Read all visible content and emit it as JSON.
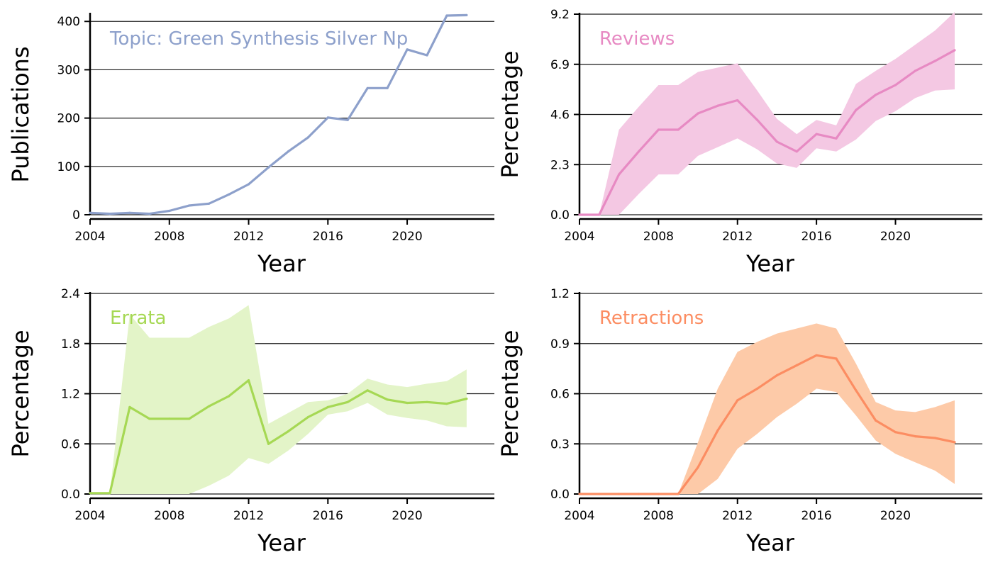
{
  "chart_data": [
    {
      "type": "line",
      "annotation": "Topic: Green Synthesis Silver Np",
      "xlabel": "Year",
      "ylabel": "Publications",
      "xlim": [
        2004,
        2024
      ],
      "ylim": [
        0,
        415
      ],
      "xticks": [
        2004,
        2008,
        2012,
        2016,
        2020
      ],
      "yticks": [
        0,
        100,
        200,
        300,
        400
      ],
      "ytick_labels": [
        "0",
        "100",
        "200",
        "300",
        "400"
      ],
      "grid": "horizontal",
      "color": "#8da0cb",
      "band": false,
      "x": [
        2004,
        2005,
        2006,
        2007,
        2008,
        2009,
        2010,
        2011,
        2012,
        2013,
        2014,
        2015,
        2016,
        2017,
        2018,
        2019,
        2020,
        2021,
        2022,
        2023
      ],
      "values": [
        4,
        2,
        4,
        2,
        8,
        19,
        23,
        42,
        63,
        98,
        131,
        160,
        201,
        196,
        262,
        262,
        342,
        330,
        412,
        413
      ]
    },
    {
      "type": "line",
      "annotation": "Reviews",
      "xlabel": "Year",
      "ylabel": "Percentage",
      "xlim": [
        2004,
        2024
      ],
      "ylim": [
        0,
        9.2
      ],
      "xticks": [
        2004,
        2008,
        2012,
        2016,
        2020
      ],
      "yticks": [
        0,
        2.3,
        4.6,
        6.9,
        9.2
      ],
      "ytick_labels": [
        "0.0",
        "2.3",
        "4.6",
        "6.9",
        "9.2"
      ],
      "grid": "horizontal",
      "color": "#e78ac3",
      "band_color": "#f4c8e3",
      "band": true,
      "x": [
        2004,
        2005,
        2006,
        2007,
        2008,
        2009,
        2010,
        2011,
        2012,
        2013,
        2014,
        2015,
        2016,
        2017,
        2018,
        2019,
        2020,
        2021,
        2022,
        2023
      ],
      "values": [
        0,
        0,
        1.85,
        2.9,
        3.9,
        3.9,
        4.65,
        5.0,
        5.25,
        4.35,
        3.35,
        2.9,
        3.7,
        3.5,
        4.8,
        5.5,
        5.95,
        6.6,
        7.05,
        7.55
      ],
      "lower": [
        0,
        0,
        0,
        0.95,
        1.85,
        1.85,
        2.7,
        3.1,
        3.5,
        3.0,
        2.35,
        2.15,
        3.05,
        2.9,
        3.45,
        4.3,
        4.75,
        5.35,
        5.7,
        5.75
      ],
      "upper": [
        0,
        0,
        3.9,
        4.95,
        5.95,
        5.95,
        6.55,
        6.75,
        6.95,
        5.7,
        4.4,
        3.7,
        4.35,
        4.1,
        6.0,
        6.6,
        7.15,
        7.8,
        8.45,
        9.3
      ]
    },
    {
      "type": "line",
      "annotation": "Errata",
      "xlabel": "Year",
      "ylabel": "Percentage",
      "xlim": [
        2004,
        2024
      ],
      "ylim": [
        0,
        2.4
      ],
      "xticks": [
        2004,
        2008,
        2012,
        2016,
        2020
      ],
      "yticks": [
        0,
        0.6,
        1.2,
        1.8,
        2.4
      ],
      "ytick_labels": [
        "0.0",
        "0.6",
        "1.2",
        "1.8",
        "2.4"
      ],
      "grid": "horizontal",
      "color": "#a6d854",
      "band_color": "#e3f4c8",
      "band": true,
      "x": [
        2004,
        2005,
        2006,
        2007,
        2008,
        2009,
        2010,
        2011,
        2012,
        2013,
        2014,
        2015,
        2016,
        2017,
        2018,
        2019,
        2020,
        2021,
        2022,
        2023
      ],
      "values": [
        0.01,
        0.01,
        1.04,
        0.9,
        0.9,
        0.9,
        1.05,
        1.17,
        1.36,
        0.6,
        0.75,
        0.92,
        1.04,
        1.1,
        1.24,
        1.13,
        1.09,
        1.1,
        1.08,
        1.14
      ],
      "lower": [
        0,
        0,
        0,
        0,
        0,
        0,
        0.1,
        0.22,
        0.43,
        0.36,
        0.52,
        0.72,
        0.95,
        0.99,
        1.09,
        0.95,
        0.91,
        0.88,
        0.81,
        0.8
      ],
      "upper": [
        0.01,
        0.01,
        2.15,
        1.87,
        1.87,
        1.87,
        2.0,
        2.1,
        2.26,
        0.84,
        0.97,
        1.1,
        1.12,
        1.2,
        1.38,
        1.31,
        1.28,
        1.32,
        1.35,
        1.49
      ]
    },
    {
      "type": "line",
      "annotation": "Retractions",
      "xlabel": "Year",
      "ylabel": "Percentage",
      "xlim": [
        2004,
        2024
      ],
      "ylim": [
        0,
        1.2
      ],
      "xticks": [
        2004,
        2008,
        2012,
        2016,
        2020
      ],
      "yticks": [
        0,
        0.3,
        0.6,
        0.9,
        1.2
      ],
      "ytick_labels": [
        "0.0",
        "0.3",
        "0.6",
        "0.9",
        "1.2"
      ],
      "grid": "horizontal",
      "color": "#fc8d62",
      "band_color": "#fdcaa8",
      "band": true,
      "x": [
        2004,
        2005,
        2006,
        2007,
        2008,
        2009,
        2010,
        2011,
        2012,
        2013,
        2014,
        2015,
        2016,
        2017,
        2018,
        2019,
        2020,
        2021,
        2022,
        2023
      ],
      "values": [
        0,
        0,
        0,
        0,
        0,
        0,
        0.16,
        0.38,
        0.56,
        0.63,
        0.71,
        0.77,
        0.83,
        0.81,
        0.62,
        0.44,
        0.37,
        0.345,
        0.335,
        0.31
      ],
      "lower": [
        0,
        0,
        0,
        0,
        0,
        0,
        0,
        0.09,
        0.27,
        0.36,
        0.46,
        0.54,
        0.63,
        0.61,
        0.47,
        0.32,
        0.24,
        0.19,
        0.14,
        0.06
      ],
      "upper": [
        0,
        0,
        0,
        0,
        0,
        0,
        0.31,
        0.63,
        0.85,
        0.91,
        0.96,
        0.99,
        1.02,
        0.99,
        0.78,
        0.55,
        0.5,
        0.49,
        0.52,
        0.56
      ]
    }
  ]
}
